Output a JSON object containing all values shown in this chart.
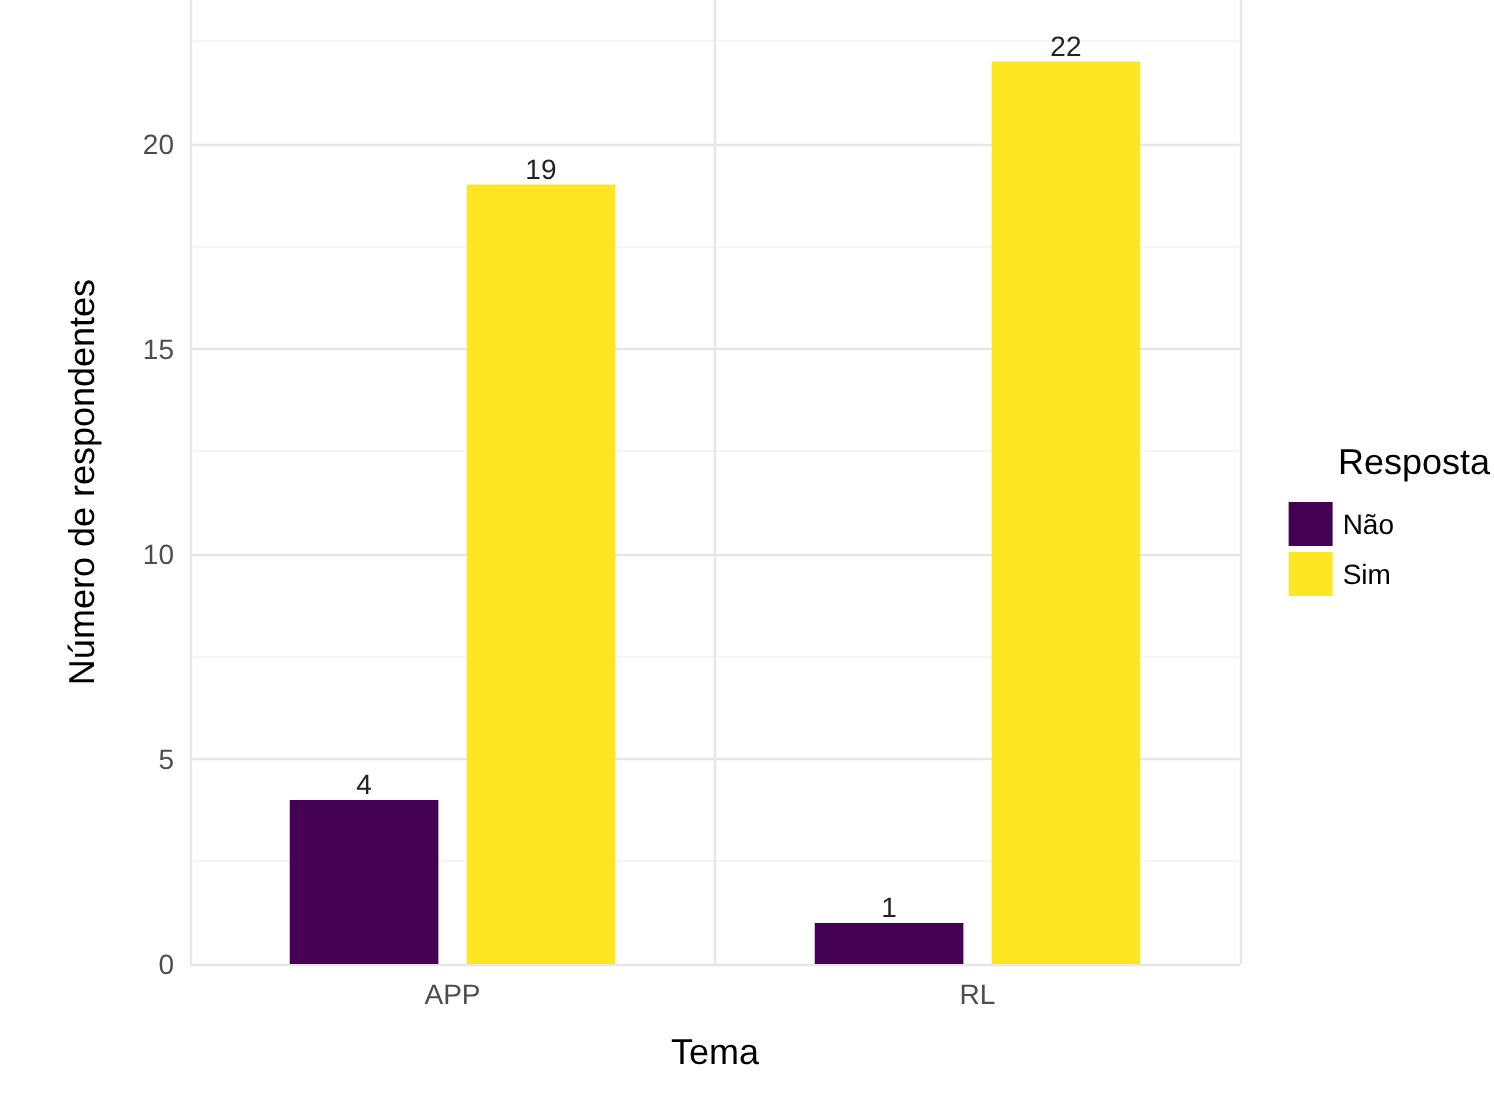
{
  "chart_data": {
    "type": "bar",
    "xlabel": "Tema",
    "ylabel": "Número de respondentes",
    "legend_title": "Resposta",
    "categories": [
      "APP",
      "RL"
    ],
    "series": [
      {
        "name": "Não",
        "color": "#440154",
        "values": [
          4,
          1
        ]
      },
      {
        "name": "Sim",
        "color": "#fde725",
        "values": [
          19,
          22
        ]
      }
    ],
    "ylim": [
      0,
      23.5
    ],
    "yticks": [
      0,
      5,
      10,
      15,
      20
    ],
    "grid": true,
    "legend": "right",
    "data_labels": true
  }
}
